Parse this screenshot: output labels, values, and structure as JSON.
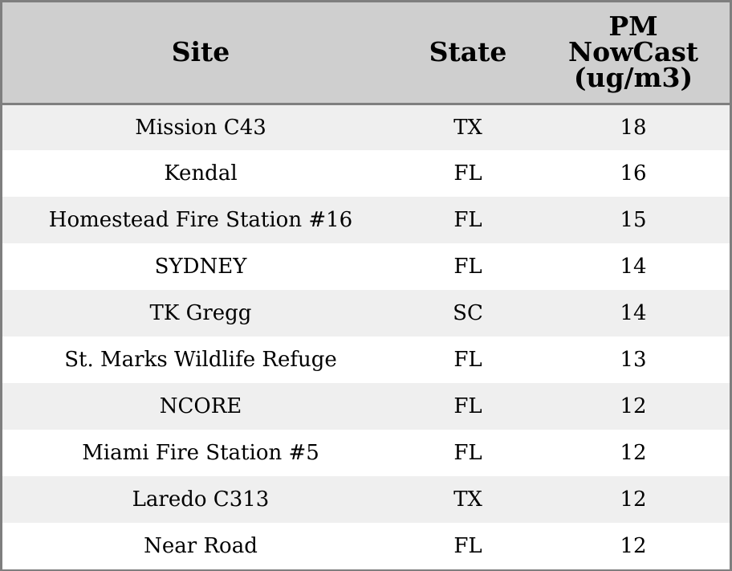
{
  "chart_data": {
    "type": "table",
    "columns": [
      "Site",
      "State",
      "PM NowCast (ug/m3)"
    ],
    "rows": [
      {
        "site": "Mission C43",
        "state": "TX",
        "pm": "18"
      },
      {
        "site": "Kendal",
        "state": "FL",
        "pm": "16"
      },
      {
        "site": "Homestead Fire Station #16",
        "state": "FL",
        "pm": "15"
      },
      {
        "site": "SYDNEY",
        "state": "FL",
        "pm": "14"
      },
      {
        "site": "TK Gregg",
        "state": "SC",
        "pm": "14"
      },
      {
        "site": "St. Marks Wildlife Refuge",
        "state": "FL",
        "pm": "13"
      },
      {
        "site": "NCORE",
        "state": "FL",
        "pm": "12"
      },
      {
        "site": "Miami Fire Station #5",
        "state": "FL",
        "pm": "12"
      },
      {
        "site": "Laredo C313",
        "state": "TX",
        "pm": "12"
      },
      {
        "site": "Near Road",
        "state": "FL",
        "pm": "12"
      }
    ],
    "header_color": "#cfcfcf",
    "stripe_color": "#efefef",
    "border_color": "#7f7f7f"
  }
}
